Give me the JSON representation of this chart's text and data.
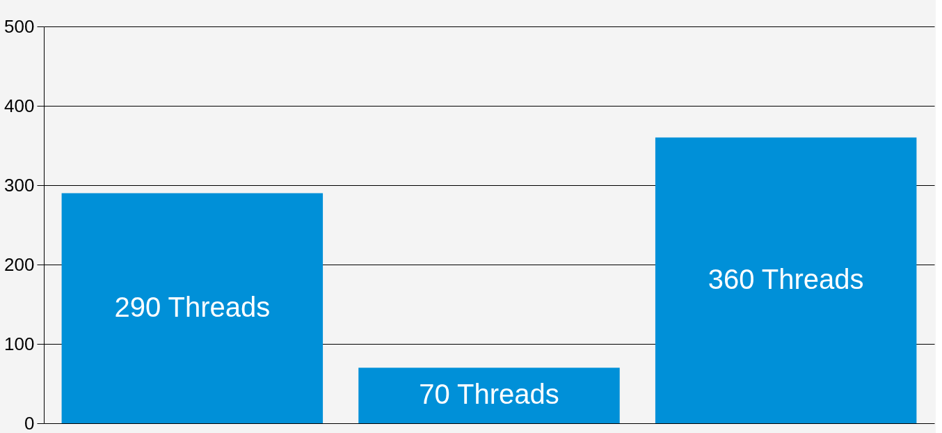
{
  "chart_data": {
    "type": "bar",
    "categories": [
      null,
      null,
      null
    ],
    "values": [
      290,
      70,
      360
    ],
    "value_labels": [
      "290 Threads",
      "70 Threads",
      "360 Threads"
    ],
    "color": "#0090d8",
    "ylim": [
      0,
      500
    ],
    "yticks": [
      0,
      100,
      200,
      300,
      400,
      500
    ],
    "grid": "y",
    "tick_labels": "y"
  }
}
